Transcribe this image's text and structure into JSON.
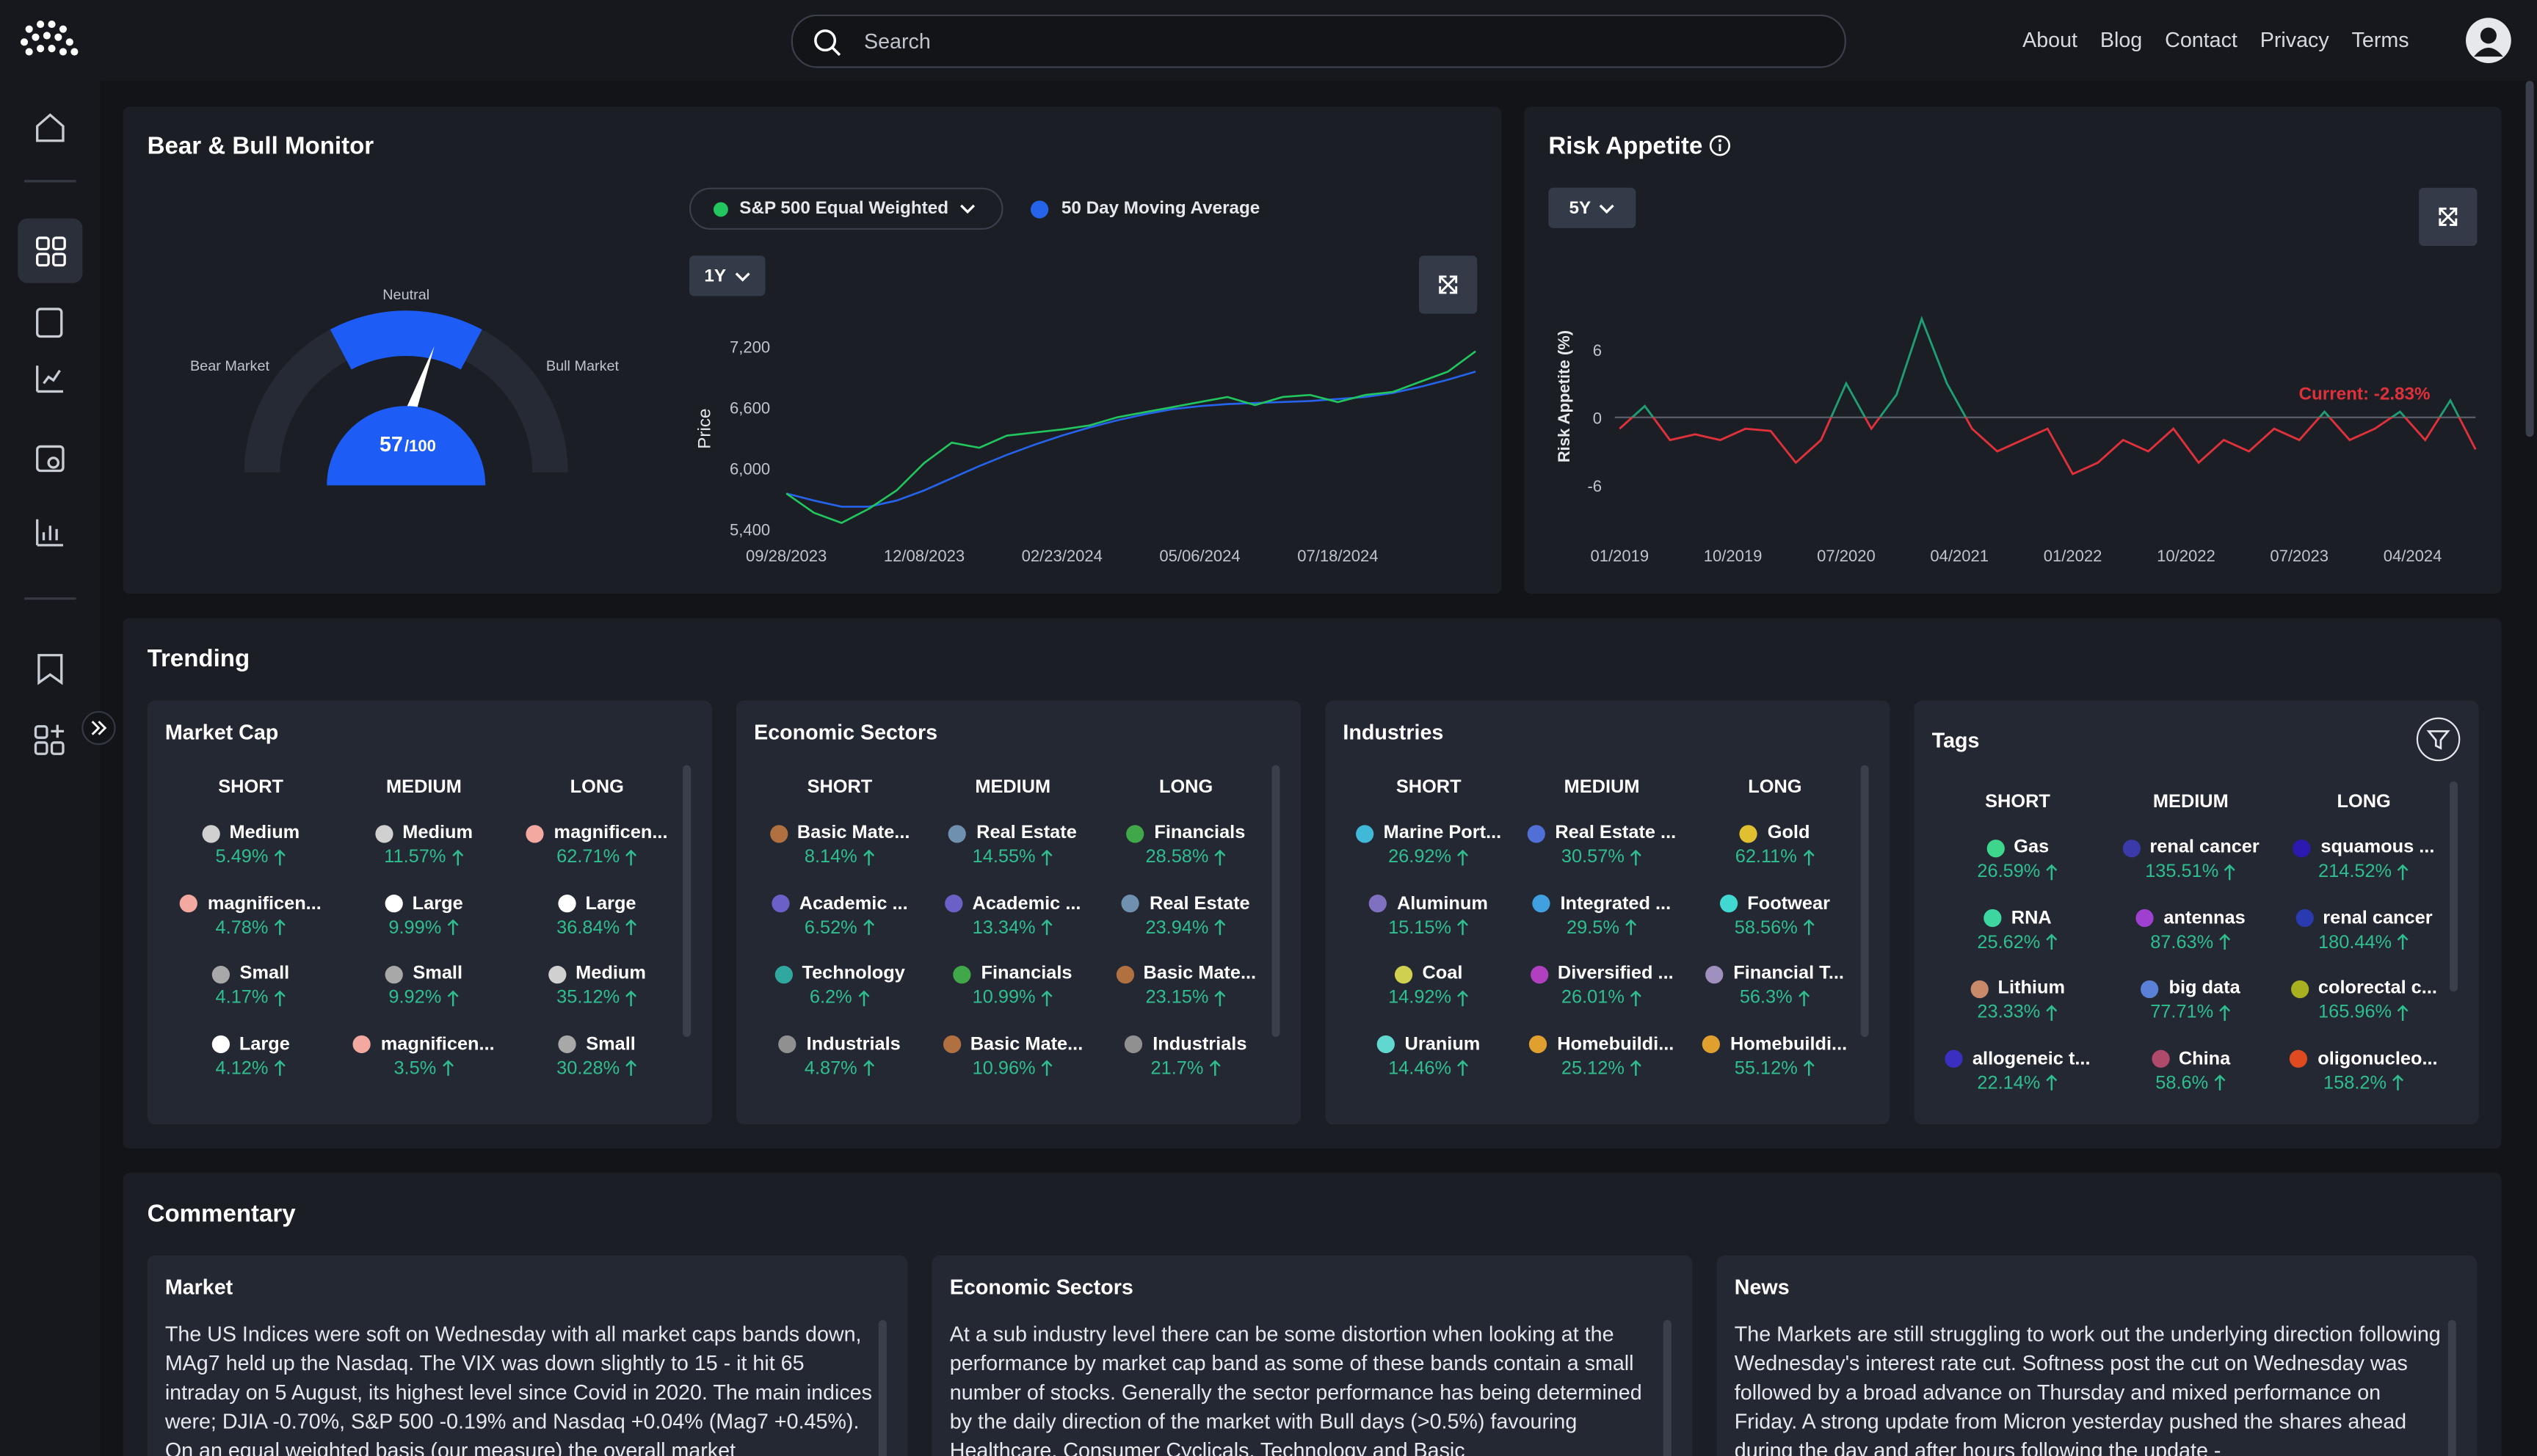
{
  "nav": {
    "search_placeholder": "Search",
    "links": [
      "About",
      "Blog",
      "Contact",
      "Privacy",
      "Terms"
    ]
  },
  "bear_bull": {
    "title": "Bear & Bull Monitor",
    "gauge": {
      "type": "gauge",
      "value": 57,
      "max": 100,
      "value_label": "57",
      "max_label": "/100",
      "labels": {
        "bear": "Bear Market",
        "neutral": "Neutral",
        "bull": "Bull Market"
      }
    },
    "range": "1Y",
    "chart": {
      "type": "line",
      "ylabel": "Price",
      "xlim": [
        0,
        25
      ],
      "ylim": [
        5400,
        7200
      ],
      "xticks": [
        {
          "value": 0,
          "label": "09/28/2023"
        },
        {
          "value": 5,
          "label": "12/08/2023"
        },
        {
          "value": 10,
          "label": "02/23/2024"
        },
        {
          "value": 15,
          "label": "05/06/2024"
        },
        {
          "value": 20,
          "label": "07/18/2024"
        }
      ],
      "yticks": [
        {
          "value": 5400,
          "label": "5,400"
        },
        {
          "value": 6000,
          "label": "6,000"
        },
        {
          "value": 6600,
          "label": "6,600"
        },
        {
          "value": 7200,
          "label": "7,200"
        }
      ],
      "x": [
        0,
        1,
        2,
        3,
        4,
        5,
        6,
        7,
        8,
        9,
        10,
        11,
        12,
        13,
        14,
        15,
        16,
        17,
        18,
        19,
        20,
        21,
        22,
        23,
        24,
        25
      ],
      "series": [
        {
          "name": "S&P 500 Equal Weighted",
          "color": "#22c55e",
          "values": [
            5750,
            5560,
            5460,
            5600,
            5780,
            6050,
            6250,
            6200,
            6320,
            6350,
            6380,
            6420,
            6500,
            6550,
            6600,
            6650,
            6700,
            6620,
            6700,
            6720,
            6650,
            6720,
            6750,
            6850,
            6950,
            7150
          ]
        },
        {
          "name": "50 Day Moving Average",
          "color": "#2563eb",
          "values": [
            5750,
            5680,
            5620,
            5620,
            5680,
            5780,
            5900,
            6020,
            6130,
            6230,
            6320,
            6400,
            6470,
            6530,
            6580,
            6610,
            6630,
            6640,
            6650,
            6660,
            6680,
            6700,
            6740,
            6800,
            6870,
            6950
          ]
        }
      ]
    }
  },
  "risk_appetite": {
    "title": "Risk Appetite",
    "range": "5Y",
    "chart": {
      "type": "line",
      "ylabel": "Risk Appetite (%)",
      "current_label": "Current: -2.83%",
      "color_positive": "#1f9d74",
      "color_negative": "#e0313b",
      "xlim": [
        0,
        68
      ],
      "ylim": [
        -9,
        9
      ],
      "xticks": [
        {
          "value": 0,
          "label": "01/2019"
        },
        {
          "value": 9,
          "label": "10/2019"
        },
        {
          "value": 18,
          "label": "07/2020"
        },
        {
          "value": 27,
          "label": "04/2021"
        },
        {
          "value": 36,
          "label": "01/2022"
        },
        {
          "value": 45,
          "label": "10/2022"
        },
        {
          "value": 54,
          "label": "07/2023"
        },
        {
          "value": 63,
          "label": "04/2024"
        }
      ],
      "yticks": [
        6,
        0,
        -6
      ],
      "x": [
        0,
        2,
        4,
        6,
        8,
        10,
        12,
        14,
        16,
        18,
        20,
        22,
        24,
        26,
        28,
        30,
        32,
        34,
        36,
        38,
        40,
        42,
        44,
        46,
        48,
        50,
        52,
        54,
        56,
        58,
        60,
        62,
        64,
        66,
        68
      ],
      "values": [
        -1,
        1,
        -2,
        -1.5,
        -2,
        -1,
        -1.2,
        -4,
        -2,
        3,
        -1,
        2,
        8.7,
        3,
        -1,
        -3,
        -2,
        -1,
        -5,
        -4,
        -2,
        -3,
        -1,
        -4,
        -2,
        -3,
        -1,
        -2,
        0.5,
        -2,
        -1,
        0.5,
        -2,
        1.5,
        -2.83
      ]
    }
  },
  "trending": {
    "title": "Trending",
    "columns": [
      "SHORT",
      "MEDIUM",
      "LONG"
    ],
    "groups": [
      {
        "title": "Market Cap",
        "items": [
          [
            {
              "name": "Medium",
              "pct": "5.49%",
              "color": "#d0d0d0"
            },
            {
              "name": "magnificen...",
              "pct": "4.78%",
              "color": "#f4a9a0"
            },
            {
              "name": "Small",
              "pct": "4.17%",
              "color": "#a8a8a8"
            },
            {
              "name": "Large",
              "pct": "4.12%",
              "color": "#ffffff"
            }
          ],
          [
            {
              "name": "Medium",
              "pct": "11.57%",
              "color": "#d0d0d0"
            },
            {
              "name": "Large",
              "pct": "9.99%",
              "color": "#ffffff"
            },
            {
              "name": "Small",
              "pct": "9.92%",
              "color": "#a8a8a8"
            },
            {
              "name": "magnificen...",
              "pct": "3.5%",
              "color": "#f4a9a0"
            }
          ],
          [
            {
              "name": "magnificen...",
              "pct": "62.71%",
              "color": "#f4a9a0"
            },
            {
              "name": "Large",
              "pct": "36.84%",
              "color": "#ffffff"
            },
            {
              "name": "Medium",
              "pct": "35.12%",
              "color": "#d0d0d0"
            },
            {
              "name": "Small",
              "pct": "30.28%",
              "color": "#a8a8a8"
            }
          ]
        ]
      },
      {
        "title": "Economic Sectors",
        "items": [
          [
            {
              "name": "Basic Mate...",
              "pct": "8.14%",
              "color": "#b07040"
            },
            {
              "name": "Academic ...",
              "pct": "6.52%",
              "color": "#6a60c8"
            },
            {
              "name": "Technology",
              "pct": "6.2%",
              "color": "#30a8a0"
            },
            {
              "name": "Industrials",
              "pct": "4.87%",
              "color": "#909090"
            }
          ],
          [
            {
              "name": "Real Estate",
              "pct": "14.55%",
              "color": "#7090b0"
            },
            {
              "name": "Academic ...",
              "pct": "13.34%",
              "color": "#6a60c8"
            },
            {
              "name": "Financials",
              "pct": "10.99%",
              "color": "#40a848"
            },
            {
              "name": "Basic Mate...",
              "pct": "10.96%",
              "color": "#b07040"
            }
          ],
          [
            {
              "name": "Financials",
              "pct": "28.58%",
              "color": "#40a848"
            },
            {
              "name": "Real Estate",
              "pct": "23.94%",
              "color": "#7090b0"
            },
            {
              "name": "Basic Mate...",
              "pct": "23.15%",
              "color": "#b07040"
            },
            {
              "name": "Industrials",
              "pct": "21.7%",
              "color": "#909090"
            }
          ]
        ]
      },
      {
        "title": "Industries",
        "items": [
          [
            {
              "name": "Marine Port...",
              "pct": "26.92%",
              "color": "#40b8d8"
            },
            {
              "name": "Aluminum",
              "pct": "15.15%",
              "color": "#8070c0"
            },
            {
              "name": "Coal",
              "pct": "14.92%",
              "color": "#d0d050"
            },
            {
              "name": "Uranium",
              "pct": "14.46%",
              "color": "#60d8d0"
            }
          ],
          [
            {
              "name": "Real Estate ...",
              "pct": "30.57%",
              "color": "#5070d8"
            },
            {
              "name": "Integrated ...",
              "pct": "29.5%",
              "color": "#40a0e0"
            },
            {
              "name": "Diversified ...",
              "pct": "26.01%",
              "color": "#b040c0"
            },
            {
              "name": "Homebuildi...",
              "pct": "25.12%",
              "color": "#e0a030"
            }
          ],
          [
            {
              "name": "Gold",
              "pct": "62.11%",
              "color": "#e0c030"
            },
            {
              "name": "Footwear",
              "pct": "58.56%",
              "color": "#40d8d0"
            },
            {
              "name": "Financial T...",
              "pct": "56.3%",
              "color": "#a090c0"
            },
            {
              "name": "Homebuildi...",
              "pct": "55.12%",
              "color": "#e0a030"
            }
          ]
        ]
      },
      {
        "title": "Tags",
        "items": [
          [
            {
              "name": "Gas",
              "pct": "26.59%",
              "color": "#3dd68c"
            },
            {
              "name": "RNA",
              "pct": "25.62%",
              "color": "#3dd6a0"
            },
            {
              "name": "Lithium",
              "pct": "23.33%",
              "color": "#c98a6a"
            },
            {
              "name": "allogeneic t...",
              "pct": "22.14%",
              "color": "#3a2fc0"
            }
          ],
          [
            {
              "name": "renal cancer",
              "pct": "135.51%",
              "color": "#3a3aa8"
            },
            {
              "name": "antennas",
              "pct": "87.63%",
              "color": "#a040d0"
            },
            {
              "name": "big data",
              "pct": "77.71%",
              "color": "#5a80d8"
            },
            {
              "name": "China",
              "pct": "58.6%",
              "color": "#b04a6a"
            }
          ],
          [
            {
              "name": "squamous ...",
              "pct": "214.52%",
              "color": "#2a1ab0"
            },
            {
              "name": "renal cancer",
              "pct": "180.44%",
              "color": "#2a3ab0"
            },
            {
              "name": "colorectal c...",
              "pct": "165.96%",
              "color": "#a8b020"
            },
            {
              "name": "oligonucleo...",
              "pct": "158.2%",
              "color": "#e04a20"
            }
          ]
        ]
      }
    ]
  },
  "commentary": {
    "title": "Commentary",
    "cards": [
      {
        "title": "Market",
        "text": "The US Indices were soft on Wednesday with all market caps bands down, MAg7 held up the Nasdaq. The VIX was down slightly to 15 - it hit 65 intraday on 5 August, its highest level since Covid in 2020. The main indices were; DJIA -0.70%, S&P 500 -0.19% and Nasdaq +0.04% (Mag7 +0.45%). On an equal weighted basis (our measure) the overall market"
      },
      {
        "title": "Economic Sectors",
        "text": "At a sub industry level there can be some distortion when looking at the performance by market cap band as some of these bands contain a small number of stocks. Generally the sector performance has being determined by the daily direction of the market with Bull days (>0.5%) favouring Healthcare, Consumer Cyclicals, Technology and Basic"
      },
      {
        "title": "News",
        "text": "The Markets are still struggling to work out the underlying direction following Wednesday's interest rate cut. Softness post the cut on Wednesday was followed by a broad advance on Thursday and mixed performance on Friday. A strong update from Micron yesterday pushed the shares ahead during the day and after hours following the update -"
      }
    ]
  }
}
